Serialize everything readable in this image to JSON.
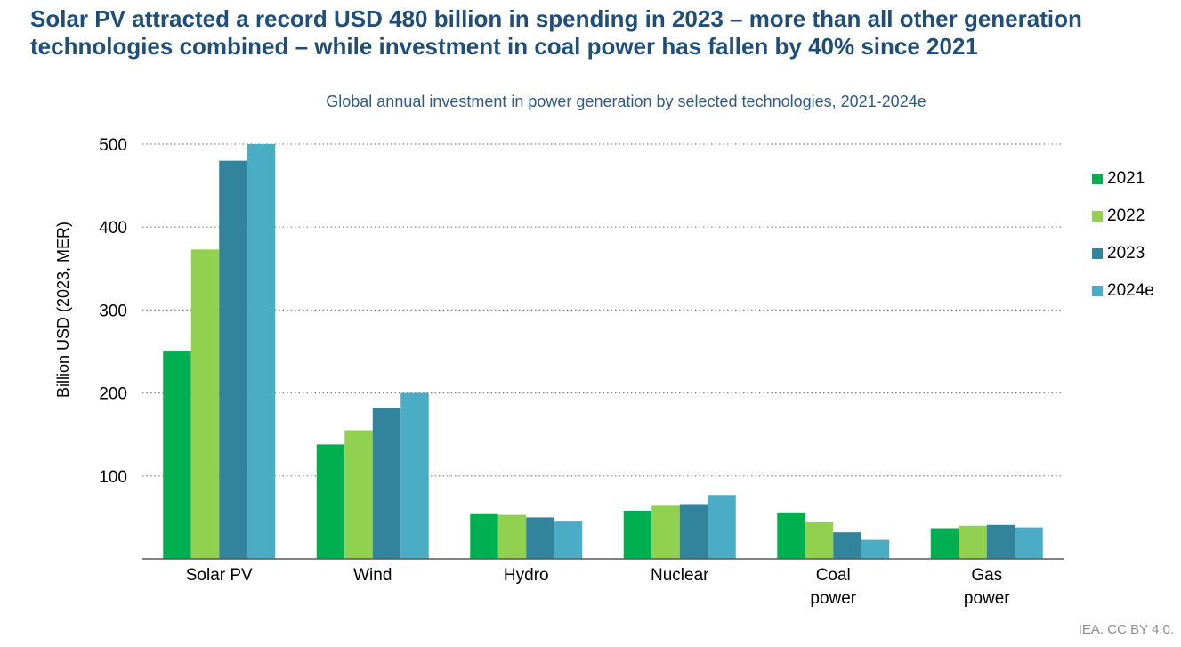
{
  "headline": "Solar PV attracted a record USD 480 billion in spending in 2023 – more than all other generation technologies combined – while investment in coal power has fallen by 40% since 2021",
  "credit": "IEA. CC BY 4.0.",
  "chart_data": {
    "type": "bar",
    "title": "Global annual investment in power generation by selected technologies, 2021-2024e",
    "ylabel": "Billion USD (2023, MER)",
    "xlabel": "",
    "ylim": [
      0,
      500
    ],
    "yticks": [
      100,
      200,
      300,
      400,
      500
    ],
    "grid": true,
    "legend_position": "right",
    "categories": [
      [
        "Solar PV"
      ],
      [
        "Wind"
      ],
      [
        "Hydro"
      ],
      [
        "Nuclear"
      ],
      [
        "Coal",
        "power"
      ],
      [
        "Gas",
        "power"
      ]
    ],
    "series": [
      {
        "name": "2021",
        "color": "#00b050",
        "values": [
          251,
          138,
          55,
          58,
          56,
          37
        ]
      },
      {
        "name": "2022",
        "color": "#92d050",
        "values": [
          373,
          155,
          53,
          64,
          44,
          40
        ]
      },
      {
        "name": "2023",
        "color": "#31849b",
        "values": [
          480,
          182,
          50,
          66,
          32,
          41
        ]
      },
      {
        "name": "2024e",
        "color": "#4bacc6",
        "values": [
          500,
          200,
          46,
          77,
          23,
          38
        ]
      }
    ]
  }
}
